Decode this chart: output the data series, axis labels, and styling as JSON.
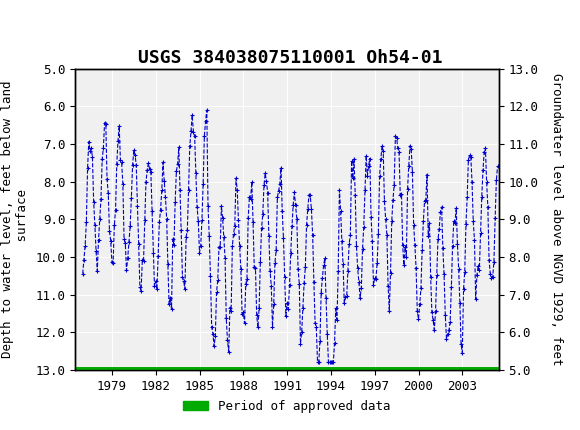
{
  "title": "USGS 384038075110001 Oh54-01",
  "left_ylabel": "Depth to water level, feet below land\n surface",
  "right_ylabel": "Groundwater level above NGVD 1929, feet",
  "ylim_left": [
    5.0,
    13.0
  ],
  "ylim_right": [
    5.0,
    13.0
  ],
  "yticks_left": [
    5.0,
    6.0,
    7.0,
    8.0,
    9.0,
    10.0,
    11.0,
    12.0,
    13.0
  ],
  "yticks_right": [
    5.0,
    6.0,
    7.0,
    8.0,
    9.0,
    10.0,
    11.0,
    12.0,
    13.0
  ],
  "xlim": [
    1976.5,
    2005.5
  ],
  "xticks": [
    1979,
    1982,
    1985,
    1988,
    1991,
    1994,
    1997,
    2000,
    2003
  ],
  "header_color": "#1a6b3c",
  "line_color": "#0000cc",
  "approved_bar_color": "#00aa00",
  "legend_label": "Period of approved data",
  "background_color": "#ffffff",
  "plot_bg_color": "#f0f0f0",
  "title_fontsize": 13,
  "axis_label_fontsize": 9,
  "tick_fontsize": 9
}
